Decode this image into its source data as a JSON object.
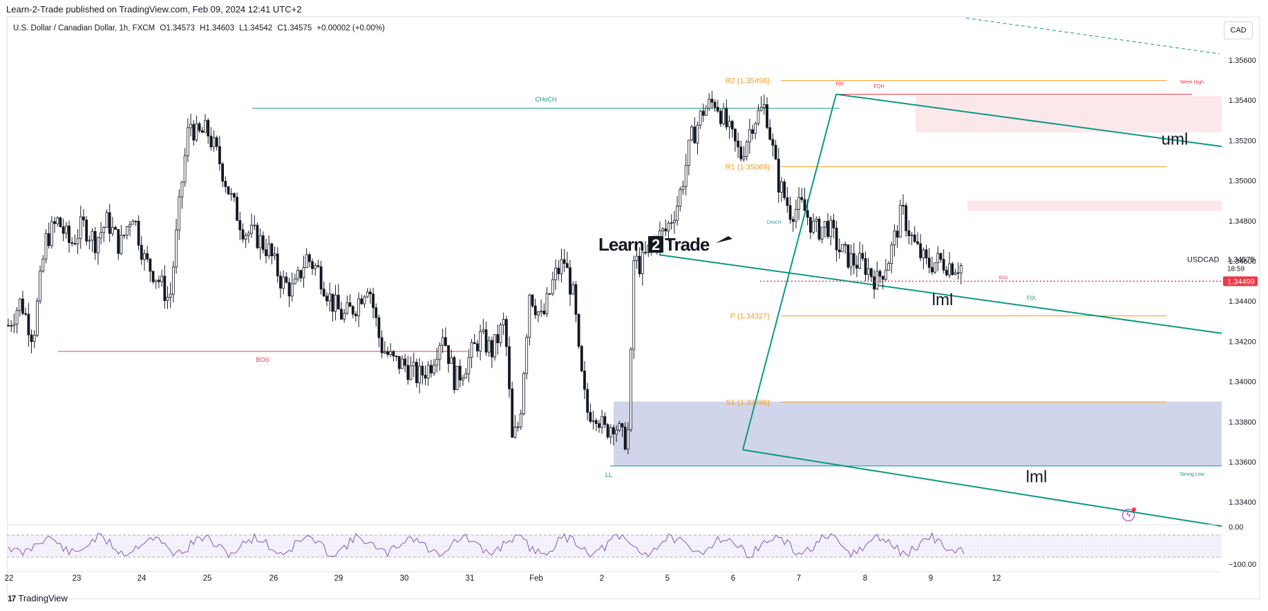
{
  "header": {
    "publish_line": "Learn-2-Trade published on TradingView.com, Feb 09, 2024 12:41 UTC+2"
  },
  "legend": {
    "symbol": "U.S. Dollar / Canadian Dollar, 1h, FXCM",
    "open": "O1.34573",
    "high": "H1.34603",
    "low": "L1.34542",
    "close": "C1.34575",
    "change": "+0.00002 (+0.00%)"
  },
  "currency": "CAD",
  "footer": {
    "brand": "TradingView",
    "logo": "17"
  },
  "watermark": {
    "text_a": "Learn",
    "text_b": "2",
    "text_c": "Trade"
  },
  "price_scale": {
    "ticks": [
      "1.35600",
      "1.35400",
      "1.35200",
      "1.35000",
      "1.34800",
      "1.34600",
      "1.34400",
      "1.34200",
      "1.34000",
      "1.33800",
      "1.33600",
      "1.33400"
    ],
    "symbol_label": "USDCAD",
    "last_price": "1.34575",
    "countdown": "18:59",
    "red_tag": "1.34499"
  },
  "rsi_scale": {
    "ticks": [
      "0.00",
      "−100.00"
    ]
  },
  "time_axis": {
    "labels": [
      "22",
      "23",
      "24",
      "25",
      "26",
      "29",
      "30",
      "31",
      "Feb",
      "2",
      "5",
      "6",
      "7",
      "8",
      "9",
      "12"
    ]
  },
  "annotations": {
    "choch": "CHoCH",
    "bos": "BOS",
    "ll": "LL",
    "hh": "HH",
    "eqh": "EQH",
    "week_high": "Week High",
    "strong_low": "Strong Low",
    "choch_small": "CHoCH",
    "bos_small": "BOS",
    "eql": "EQL",
    "uml": "uml",
    "lml_1": "lml",
    "lml_2": "lml"
  },
  "pivots": {
    "r2": "R2 (1.35498)",
    "r1": "R1 (1.35069)",
    "p": "P (1.34327)",
    "s1": "S1 (1.33898)"
  },
  "colors": {
    "up": "#131722",
    "down": "#131722",
    "pivot": "#f89b1d",
    "channel": "#089981",
    "bos_line": "#f23645",
    "demand_zone": "#c5cbe6",
    "supply_zone": "#fce7ea",
    "rsi": "#7e57c2"
  },
  "chart_data": {
    "type": "candlestick",
    "title": "U.S. Dollar / Canadian Dollar, 1h, FXCM",
    "xlabel": "",
    "ylabel": "",
    "ylim": [
      1.332,
      1.357
    ],
    "x_ticks": [
      "22",
      "23",
      "24",
      "25",
      "26",
      "29",
      "30",
      "31",
      "Feb",
      "2",
      "5",
      "6",
      "7",
      "8",
      "9",
      "12"
    ],
    "pivot_levels": [
      {
        "label": "R2",
        "value": 1.35498
      },
      {
        "label": "R1",
        "value": 1.35069
      },
      {
        "label": "P",
        "value": 1.34327
      },
      {
        "label": "S1",
        "value": 1.33898
      }
    ],
    "horizontal_levels": [
      {
        "label": "CHoCH",
        "value": 1.3536
      },
      {
        "label": "BOS",
        "value": 1.3415
      },
      {
        "label": "Week High",
        "value": 1.3543
      },
      {
        "label": "Strong Low",
        "value": 1.3358
      },
      {
        "label": "current",
        "value": 1.34499
      }
    ],
    "close_path": [
      [
        0,
        1.3428
      ],
      [
        0.5,
        1.344
      ],
      [
        1,
        1.3422
      ],
      [
        1.5,
        1.347
      ],
      [
        2,
        1.348
      ],
      [
        2.5,
        1.3468
      ],
      [
        3,
        1.3478
      ],
      [
        3.5,
        1.347
      ],
      [
        4,
        1.348
      ],
      [
        4.5,
        1.3467
      ],
      [
        5,
        1.3485
      ],
      [
        5.5,
        1.346
      ],
      [
        6,
        1.3452
      ],
      [
        6.5,
        1.344
      ],
      [
        7,
        1.35
      ],
      [
        7.3,
        1.353
      ],
      [
        7.6,
        1.3522
      ],
      [
        8,
        1.3525
      ],
      [
        8.5,
        1.351
      ],
      [
        9,
        1.349
      ],
      [
        9.5,
        1.3475
      ],
      [
        10,
        1.3472
      ],
      [
        10.5,
        1.3465
      ],
      [
        11,
        1.345
      ],
      [
        11.5,
        1.3445
      ],
      [
        12,
        1.3462
      ],
      [
        12.5,
        1.3455
      ],
      [
        13,
        1.344
      ],
      [
        13.5,
        1.3432
      ],
      [
        14,
        1.3438
      ],
      [
        14.5,
        1.345
      ],
      [
        15,
        1.3418
      ],
      [
        15.5,
        1.341
      ],
      [
        16,
        1.3408
      ],
      [
        16.5,
        1.3402
      ],
      [
        17,
        1.3408
      ],
      [
        17.5,
        1.3425
      ],
      [
        18,
        1.34
      ],
      [
        18.5,
        1.341
      ],
      [
        19,
        1.3422
      ],
      [
        19.5,
        1.3415
      ],
      [
        20,
        1.343
      ],
      [
        20.3,
        1.337
      ],
      [
        20.6,
        1.338
      ],
      [
        21,
        1.3445
      ],
      [
        21.5,
        1.343
      ],
      [
        22,
        1.3452
      ],
      [
        22.4,
        1.346
      ],
      [
        22.8,
        1.344
      ],
      [
        23,
        1.341
      ],
      [
        23.3,
        1.3385
      ],
      [
        23.7,
        1.3385
      ],
      [
        24,
        1.3375
      ],
      [
        24.4,
        1.338
      ],
      [
        24.8,
        1.337
      ],
      [
        25,
        1.3376
      ],
      [
        25.2,
        1.346
      ],
      [
        25.5,
        1.3458
      ],
      [
        26,
        1.347
      ],
      [
        26.5,
        1.3475
      ],
      [
        27,
        1.349
      ],
      [
        27.5,
        1.352
      ],
      [
        28,
        1.3535
      ],
      [
        28.5,
        1.354
      ],
      [
        29,
        1.3525
      ],
      [
        29.5,
        1.3512
      ],
      [
        30,
        1.353
      ],
      [
        30.5,
        1.3537
      ],
      [
        31,
        1.35
      ],
      [
        31.5,
        1.3485
      ],
      [
        32,
        1.3487
      ],
      [
        32.5,
        1.3475
      ],
      [
        33,
        1.3478
      ],
      [
        33.5,
        1.3465
      ],
      [
        34,
        1.346
      ],
      [
        34.5,
        1.3458
      ],
      [
        35,
        1.345
      ],
      [
        35.5,
        1.3462
      ],
      [
        36,
        1.3485
      ],
      [
        36.5,
        1.3468
      ],
      [
        37,
        1.3458
      ],
      [
        37.5,
        1.346
      ],
      [
        38,
        1.3458
      ],
      [
        38.5,
        1.34575
      ]
    ],
    "rsi": {
      "scale": [
        "0.00",
        "−100.00"
      ]
    }
  }
}
